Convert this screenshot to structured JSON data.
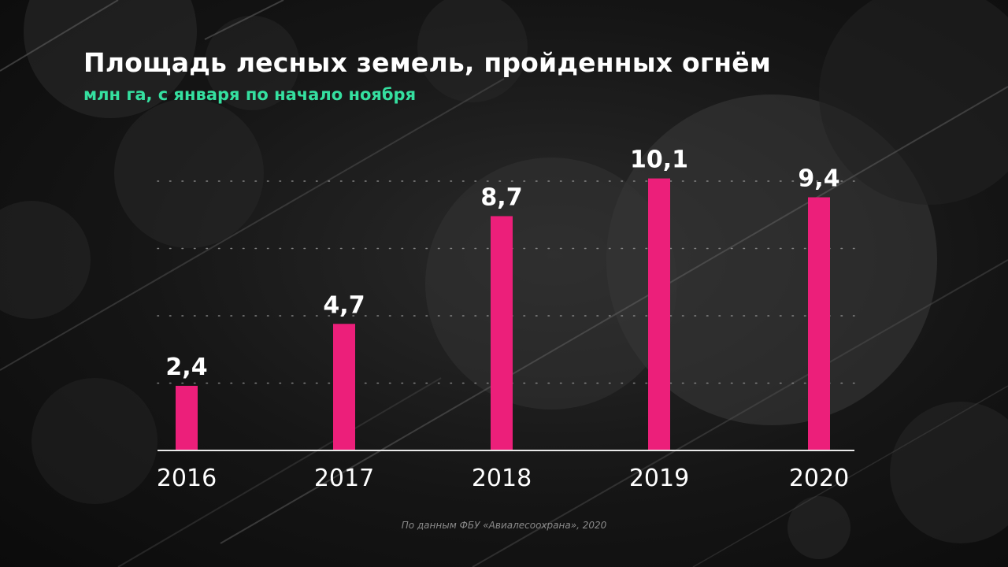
{
  "title": "Площадь лесных земель, пройденных огнём",
  "subtitle": "млн га, с января по начало ноября",
  "source": "По данным ФБУ «Авиалесоохрана», 2020",
  "colors": {
    "bar": "#ec1f7a",
    "subtitle": "#35e0a0",
    "text": "#ffffff",
    "axis": "#e8e8e8",
    "grid": "#9a9a9a"
  },
  "chart_data": {
    "type": "bar",
    "categories": [
      "2016",
      "2017",
      "2018",
      "2019",
      "2020"
    ],
    "values": [
      2.4,
      4.7,
      8.7,
      10.1,
      9.4
    ],
    "value_labels": [
      "2,4",
      "4,7",
      "8,7",
      "10,1",
      "9,4"
    ],
    "title": "Площадь лесных земель, пройденных огнём",
    "subtitle": "млн га, с января по начало ноября",
    "xlabel": "",
    "ylabel": "",
    "ylim": [
      0,
      12
    ],
    "grid": true,
    "legend": "none"
  }
}
